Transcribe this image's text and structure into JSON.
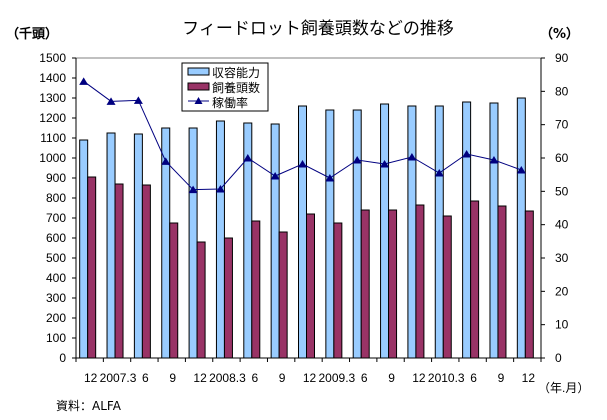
{
  "chart_data": {
    "type": "bar",
    "title": "フィードロット飼養頭数などの推移",
    "y_left_unit": "（千頭）",
    "y_right_unit": "（%）",
    "x_unit": "（年.月）",
    "source": "資料：ALFA",
    "categories": [
      "12",
      "2007.3",
      "6",
      "9",
      "12",
      "2008.3",
      "6",
      "9",
      "12",
      "2009.3",
      "6",
      "9",
      "12",
      "2010.3",
      "6",
      "9",
      "12"
    ],
    "ylim_left": [
      0,
      1500
    ],
    "ylim_right": [
      0,
      90
    ],
    "yticks_left": [
      "0",
      "100",
      "200",
      "300",
      "400",
      "500",
      "600",
      "700",
      "800",
      "900",
      "1000",
      "1100",
      "1200",
      "1300",
      "1400",
      "1500"
    ],
    "yticks_right": [
      "0",
      "10",
      "20",
      "30",
      "40",
      "50",
      "60",
      "70",
      "80",
      "90"
    ],
    "legend_position": "top-left",
    "grid": false,
    "series": [
      {
        "name": "収容能力",
        "type": "bar",
        "axis": "left",
        "color": "#99CCFF",
        "values": [
          1090,
          1125,
          1120,
          1150,
          1150,
          1185,
          1175,
          1170,
          1260,
          1240,
          1240,
          1270,
          1260,
          1260,
          1280,
          1275,
          1300
        ]
      },
      {
        "name": "飼養頭数",
        "type": "bar",
        "axis": "left",
        "color": "#993366",
        "values": [
          905,
          870,
          865,
          675,
          580,
          600,
          685,
          630,
          720,
          675,
          740,
          740,
          765,
          710,
          785,
          760,
          735
        ]
      },
      {
        "name": "稼働率",
        "type": "line",
        "axis": "right",
        "color": "#000080",
        "marker": "triangle",
        "values": [
          83,
          77,
          77.3,
          59,
          50.5,
          50.7,
          60,
          54.6,
          58.2,
          54,
          59.4,
          58.2,
          60.3,
          55.5,
          61.2,
          59.4,
          56.4
        ]
      }
    ]
  }
}
